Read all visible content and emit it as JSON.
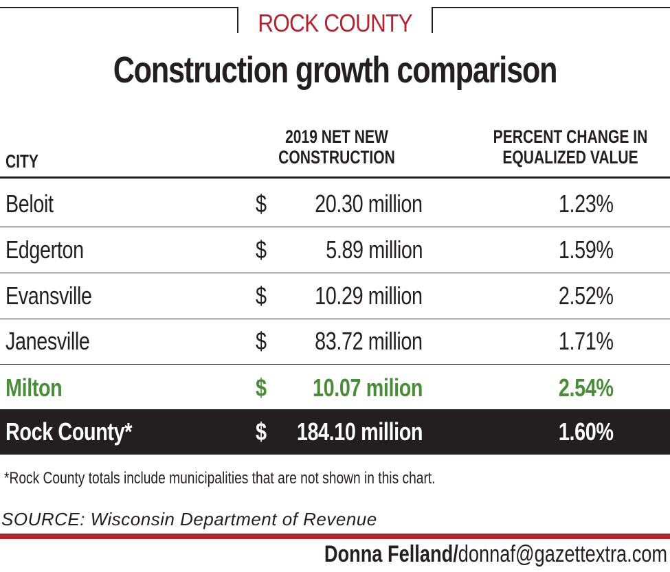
{
  "kicker": "ROCK COUNTY",
  "title": "Construction growth comparison",
  "chart_data": {
    "type": "table",
    "columns": [
      "CITY",
      "2019 NET NEW CONSTRUCTION",
      "PERCENT CHANGE IN EQUALIZED VALUE"
    ],
    "rows": [
      {
        "city": "Beloit",
        "currency": "$",
        "amount": "20.30 million",
        "pct": "1.23%"
      },
      {
        "city": "Edgerton",
        "currency": "$",
        "amount": "5.89 million",
        "pct": "1.59%"
      },
      {
        "city": "Evansville",
        "currency": "$",
        "amount": "10.29 million",
        "pct": "2.52%"
      },
      {
        "city": "Janesville",
        "currency": "$",
        "amount": "83.72 million",
        "pct": "1.71%"
      },
      {
        "city": "Milton",
        "currency": "$",
        "amount": "10.07 milion",
        "pct": "2.54%"
      }
    ],
    "total": {
      "city": "Rock County*",
      "currency": "$",
      "amount": "184.10 million",
      "pct": "1.60%"
    },
    "highlight_color": "#4a8c3a",
    "total_row_color": "#231f20"
  },
  "header": {
    "city": "CITY",
    "net_line1": "2019 NET NEW",
    "net_line2": "CONSTRUCTION",
    "pct_line1": "PERCENT CHANGE IN",
    "pct_line2": "EQUALIZED VALUE"
  },
  "footnote": "*Rock County totals include municipalities that are not shown in this chart.",
  "source": "SOURCE: Wisconsin Department of Revenue",
  "credit": {
    "name": "Donna Felland/",
    "email": "donnaf@gazettextra.com"
  },
  "colors": {
    "accent_red": "#b22530",
    "text": "#231f20"
  }
}
